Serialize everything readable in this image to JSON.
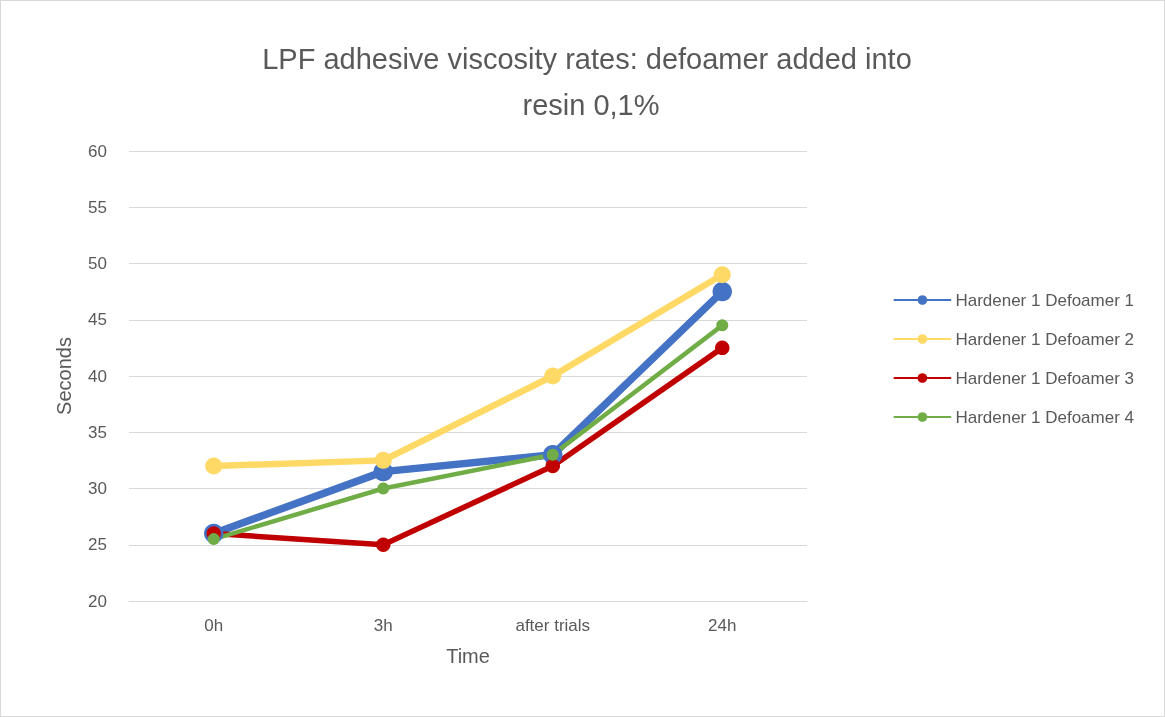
{
  "chart_data": {
    "type": "line",
    "title": "LPF adhesive viscosity rates: defoamer added into resin 0,1%",
    "xlabel": "Time",
    "ylabel": "Seconds",
    "categories": [
      "0h",
      "3h",
      "after trials",
      "24h"
    ],
    "series": [
      {
        "name": "Hardener 1 Defoamer 1",
        "color": "#4472c4",
        "values": [
          26,
          31.5,
          33,
          47.5
        ]
      },
      {
        "name": "Hardener 1 Defoamer 2",
        "color": "#ffd966",
        "values": [
          32,
          32.5,
          40,
          49
        ]
      },
      {
        "name": "Hardener 1 Defoamer 3",
        "color": "#c00000",
        "values": [
          26,
          25,
          32,
          42.5
        ]
      },
      {
        "name": "Hardener 1 Defoamer 4",
        "color": "#70ad47",
        "values": [
          25.5,
          30,
          33,
          44.5
        ]
      }
    ],
    "ylim": [
      20,
      60
    ],
    "yticks": [
      20,
      25,
      30,
      35,
      40,
      45,
      50,
      55,
      60
    ],
    "grid": "y",
    "legend": "right",
    "marker": "circle",
    "line_style": "solid"
  }
}
